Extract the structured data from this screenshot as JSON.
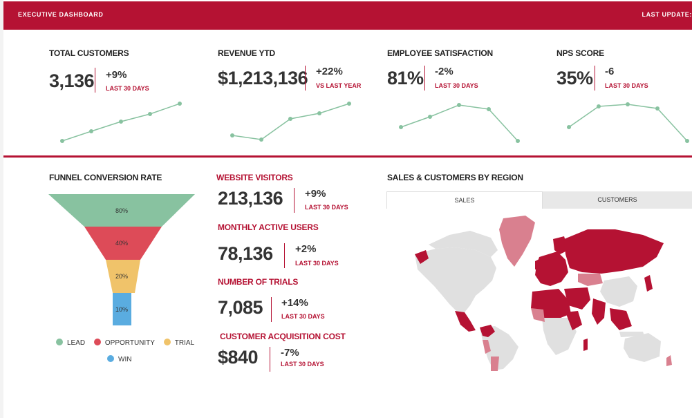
{
  "header": {
    "title": "EXECUTIVE DASHBOARD",
    "last_update": "LAST UPDATE: "
  },
  "kpis": [
    {
      "label": "TOTAL CUSTOMERS",
      "value": "3,136",
      "delta": "+9%",
      "period": "LAST 30 DAYS",
      "trend": [
        1,
        2,
        3,
        4,
        5
      ]
    },
    {
      "label": "REVENUE YTD",
      "value": "$1,213,136",
      "delta": "+22%",
      "period": "VS LAST YEAR",
      "trend": [
        3,
        2,
        6,
        7,
        9
      ]
    },
    {
      "label": "EMPLOYEE SATISFACTION",
      "value": "81%",
      "delta": "-2%",
      "period": "LAST 30 DAYS",
      "trend": [
        5,
        7,
        10,
        9,
        0
      ]
    },
    {
      "label": "NPS SCORE",
      "value": "35%",
      "delta": "-6",
      "period": "LAST 30 DAYS",
      "trend": [
        5,
        9,
        9.5,
        9,
        0
      ]
    }
  ],
  "funnel": {
    "title": "FUNNEL CONVERSION RATE",
    "stages": [
      {
        "name": "LEAD",
        "percent": "80%",
        "color": "#88c2a0"
      },
      {
        "name": "OPPORTUNITY",
        "percent": "40%",
        "color": "#dd4b58"
      },
      {
        "name": "TRIAL",
        "percent": "20%",
        "color": "#f0c36a"
      },
      {
        "name": "WIN",
        "percent": "10%",
        "color": "#5aace0"
      }
    ]
  },
  "metrics": [
    {
      "label": "WEBSITE VISITORS",
      "value": "213,136",
      "delta": "+9%",
      "period": "LAST 30 DAYS"
    },
    {
      "label": "MONTHLY ACTIVE USERS",
      "value": "78,136",
      "delta": "+2%",
      "period": "LAST 30 DAYS"
    },
    {
      "label": "NUMBER OF TRIALS",
      "value": "7,085",
      "delta": "+14%",
      "period": "LAST 30 DAYS"
    },
    {
      "label": "CUSTOMER ACQUISITION COST",
      "value": "$840",
      "delta": "-7%",
      "period": "LAST 30 DAYS"
    }
  ],
  "region": {
    "title": "SALES & CUSTOMERS BY REGION",
    "tabs": [
      "SALES",
      "CUSTOMERS"
    ],
    "active_tab": "SALES"
  },
  "colors": {
    "accent": "#b51233",
    "spark": "#88c2a0",
    "map_high": "#b51233",
    "map_mid": "#d9808f",
    "map_low": "#e0e0e0"
  }
}
